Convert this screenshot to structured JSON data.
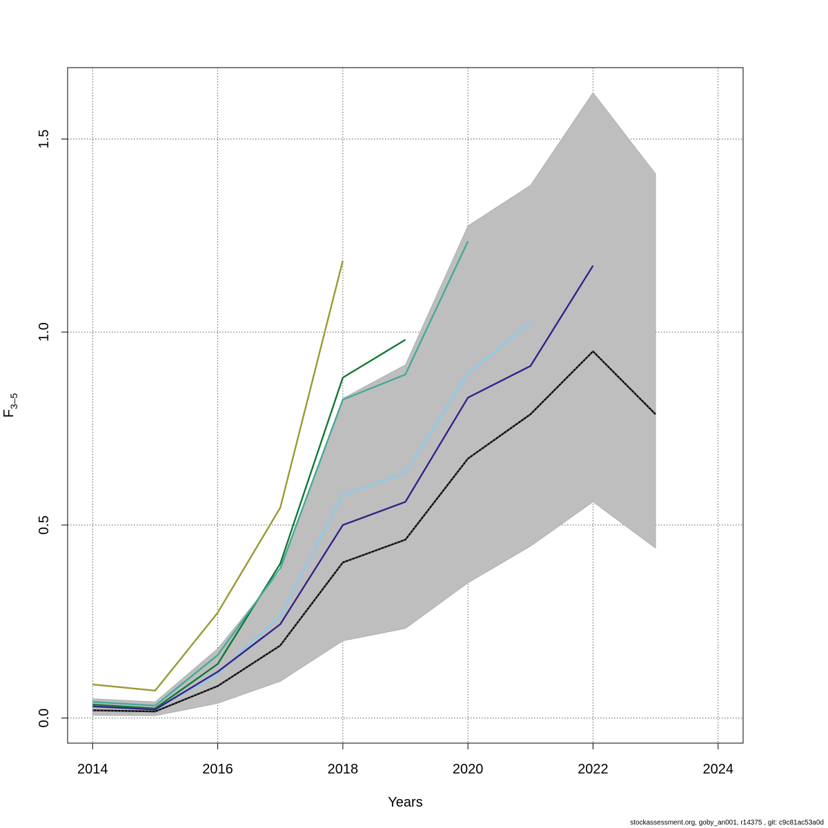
{
  "chart_data": {
    "type": "line",
    "xlabel": "Years",
    "ylabel": "F",
    "ylabel_subscript": "3–5",
    "xlim": [
      2013.6,
      2024.4
    ],
    "ylim": [
      -0.065,
      1.685
    ],
    "x_ticks": [
      2014,
      2016,
      2018,
      2020,
      2022,
      2024
    ],
    "x_tick_labels": [
      "2014",
      "2016",
      "2018",
      "2020",
      "2022",
      "2024"
    ],
    "y_ticks": [
      0.0,
      0.5,
      1.0,
      1.5
    ],
    "y_tick_labels": [
      "0.0",
      "0.5",
      "1.0",
      "1.5"
    ],
    "grid": true,
    "confidence_band": {
      "color": "#bebebe",
      "x": [
        2014,
        2015,
        2016,
        2017,
        2018,
        2019,
        2020,
        2021,
        2022,
        2023
      ],
      "lower": [
        0.007,
        0.006,
        0.038,
        0.095,
        0.2,
        0.232,
        0.35,
        0.445,
        0.56,
        0.44
      ],
      "upper": [
        0.05,
        0.042,
        0.18,
        0.38,
        0.828,
        0.915,
        1.275,
        1.38,
        1.62,
        1.41
      ]
    },
    "series": [
      {
        "color": "#999933",
        "x": [
          2014,
          2015,
          2016,
          2017,
          2018
        ],
        "values": [
          0.087,
          0.071,
          0.273,
          0.545,
          1.185
        ],
        "dashed": false
      },
      {
        "color": "#117733",
        "x": [
          2014,
          2015,
          2016,
          2017,
          2018,
          2019
        ],
        "values": [
          0.035,
          0.025,
          0.14,
          0.4,
          0.882,
          0.98
        ],
        "dashed": false
      },
      {
        "color": "#44aa99",
        "x": [
          2014,
          2015,
          2016,
          2017,
          2018,
          2019,
          2020
        ],
        "values": [
          0.042,
          0.032,
          0.163,
          0.388,
          0.825,
          0.89,
          1.235
        ],
        "dashed": false
      },
      {
        "color": "#88ccee",
        "x": [
          2014,
          2015,
          2016,
          2017,
          2018,
          2019,
          2020,
          2021
        ],
        "values": [
          0.03,
          0.022,
          0.115,
          0.265,
          0.578,
          0.635,
          0.893,
          1.025
        ],
        "dashed": false
      },
      {
        "color": "#332288",
        "x": [
          2014,
          2015,
          2016,
          2017,
          2018,
          2019,
          2020,
          2021,
          2022
        ],
        "values": [
          0.03,
          0.022,
          0.12,
          0.243,
          0.5,
          0.56,
          0.83,
          0.912,
          1.172
        ],
        "dashed": false
      },
      {
        "color": "#000000",
        "x": [
          2014,
          2015,
          2016,
          2017,
          2018,
          2019,
          2020,
          2021,
          2022,
          2023
        ],
        "values": [
          0.02,
          0.017,
          0.083,
          0.188,
          0.403,
          0.462,
          0.672,
          0.787,
          0.95,
          0.787
        ],
        "dashed": true
      }
    ]
  },
  "footer": "stockassessment.org, goby_an001, r14375 , git: c9c81ac53a0d"
}
